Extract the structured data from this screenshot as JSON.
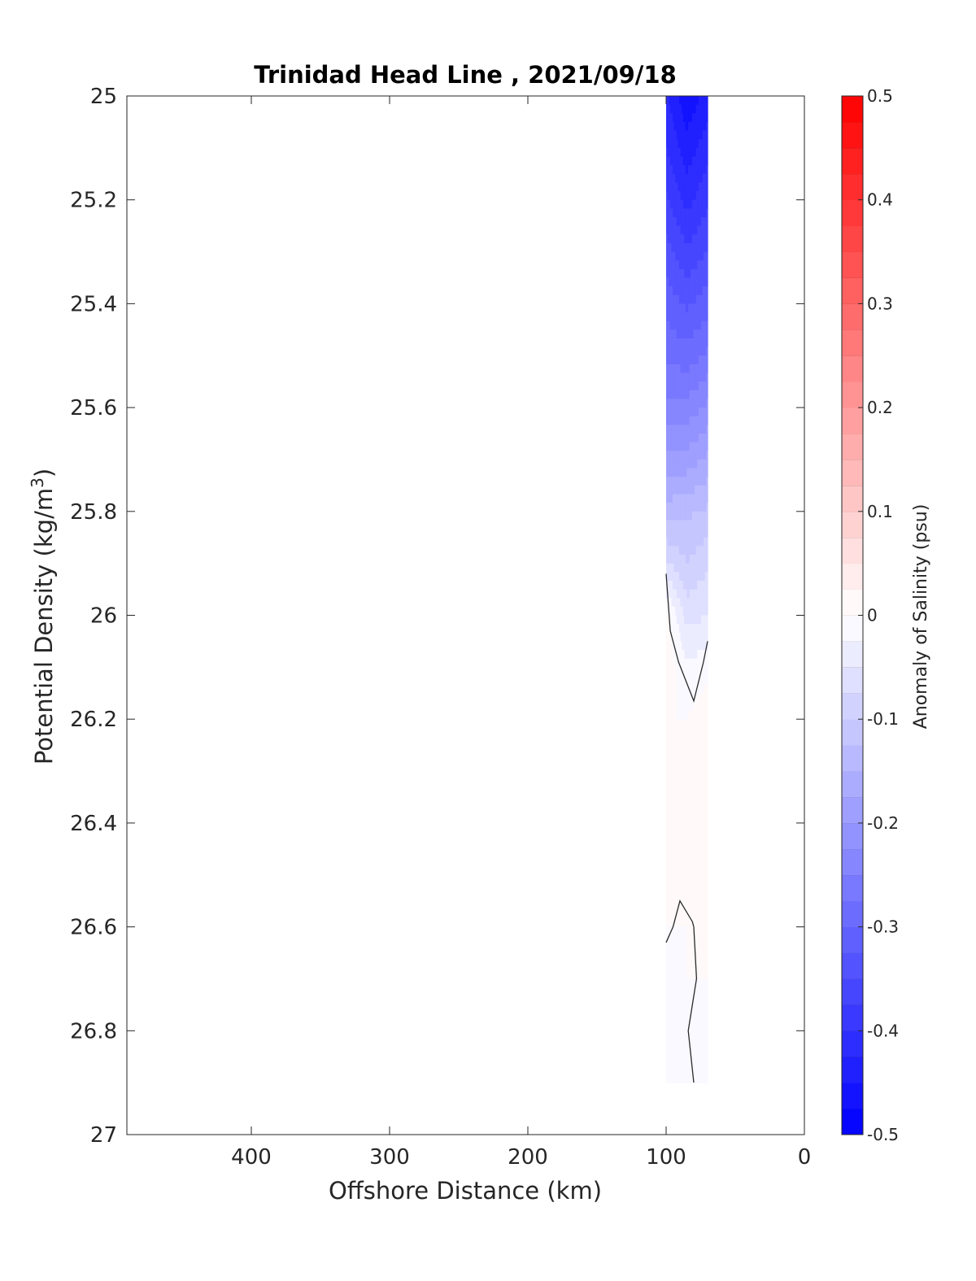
{
  "chart_data": {
    "type": "heatmap",
    "title": "Trinidad Head Line , 2021/09/18",
    "xlabel": "Offshore Distance (km)",
    "ylabel": "Potential Density (kg/m",
    "ylabel_sup": "3",
    "ylabel_close": ")",
    "xlim": [
      490,
      0
    ],
    "x_reversed": true,
    "xticks": [
      400,
      300,
      200,
      100,
      0
    ],
    "ylim": [
      25,
      27
    ],
    "y_reversed": true,
    "yticks": [
      "25",
      "25.2",
      "25.4",
      "25.6",
      "25.8",
      "26",
      "26.2",
      "26.4",
      "26.6",
      "26.8",
      "27"
    ],
    "yticks_values": [
      25,
      25.2,
      25.4,
      25.6,
      25.8,
      26,
      26.2,
      26.4,
      26.6,
      26.8,
      27
    ],
    "colorbar": {
      "label": "Anomaly of Salinity (psu)",
      "min": -0.5,
      "max": 0.5,
      "levels": 40,
      "ticks": [
        "0.5",
        "0.4",
        "0.3",
        "0.2",
        "0.1",
        "0",
        "-0.1",
        "-0.2",
        "-0.3",
        "-0.4",
        "-0.5"
      ],
      "ticks_values": [
        0.5,
        0.4,
        0.3,
        0.2,
        0.1,
        0,
        -0.1,
        -0.2,
        -0.3,
        -0.4,
        -0.5
      ],
      "low_color": "#0000ff",
      "mid_color": "#ffffff",
      "high_color": "#ff0000"
    },
    "grid": false,
    "station_x": [
      100,
      85,
      70
    ],
    "y_levels": [
      25.0,
      25.1,
      25.2,
      25.3,
      25.4,
      25.5,
      25.6,
      25.7,
      25.8,
      25.9,
      26.0,
      26.1,
      26.2,
      26.3,
      26.4,
      26.5,
      26.6,
      26.7,
      26.8,
      26.9
    ],
    "salinity_anomaly": [
      [
        -0.42,
        -0.47,
        -0.44
      ],
      [
        -0.4,
        -0.44,
        -0.41
      ],
      [
        -0.37,
        -0.41,
        -0.38
      ],
      [
        -0.34,
        -0.37,
        -0.35
      ],
      [
        -0.31,
        -0.33,
        -0.31
      ],
      [
        -0.28,
        -0.29,
        -0.27
      ],
      [
        -0.24,
        -0.24,
        -0.22
      ],
      [
        -0.19,
        -0.19,
        -0.17
      ],
      [
        -0.14,
        -0.13,
        -0.12
      ],
      [
        -0.07,
        -0.1,
        -0.08
      ],
      [
        0.01,
        -0.06,
        -0.05
      ],
      [
        0.02,
        -0.02,
        -0.01
      ],
      [
        0.0,
        0.0,
        0.02
      ],
      [
        0.0,
        0.01,
        0.02
      ],
      [
        0.0,
        0.01,
        0.02
      ],
      [
        0.0,
        0.0,
        0.01
      ],
      [
        0.0,
        0.0,
        0.0
      ],
      [
        -0.01,
        0.0,
        0.0
      ],
      [
        -0.02,
        -0.01,
        0.0
      ],
      [
        -0.02,
        -0.01,
        0.0
      ]
    ],
    "zero_contours": [
      [
        [
          100,
          25.92
        ],
        [
          97,
          26.03
        ],
        [
          91,
          26.09
        ],
        [
          80,
          26.165
        ],
        [
          73,
          26.09
        ],
        [
          70,
          26.05
        ]
      ],
      [
        [
          100,
          26.63
        ],
        [
          95,
          26.6
        ],
        [
          90,
          26.55
        ],
        [
          81,
          26.59
        ],
        [
          80,
          26.6
        ]
      ],
      [
        [
          80,
          26.6
        ],
        [
          78,
          26.7
        ],
        [
          84,
          26.8
        ],
        [
          80,
          26.9
        ]
      ]
    ]
  }
}
